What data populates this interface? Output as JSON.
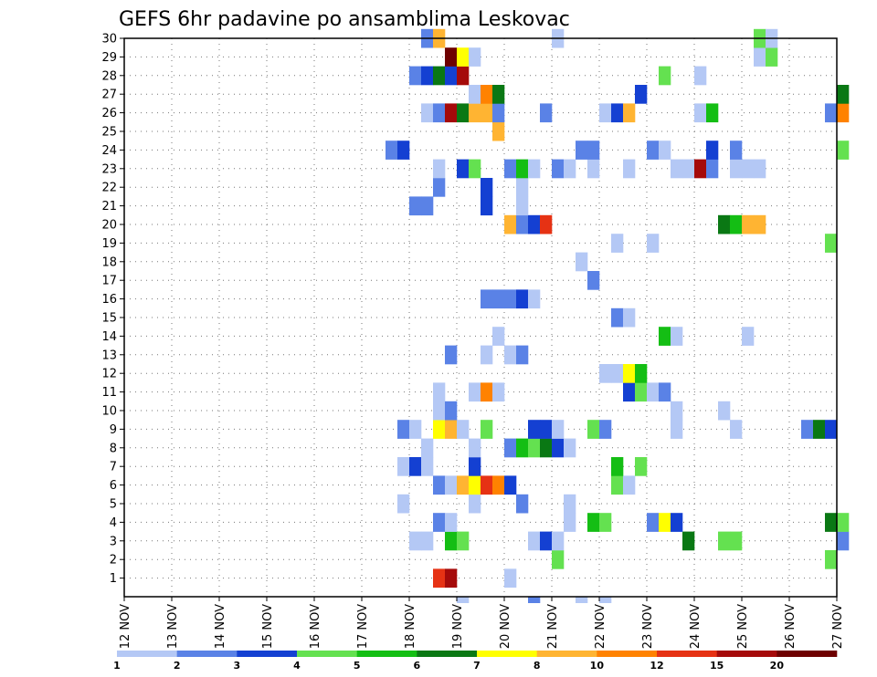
{
  "chart_data": {
    "type": "heatmap",
    "title": "GEFS 6hr padavine po ansamblima Leskovac",
    "x_tick_labels": [
      "12 NOV",
      "13 NOV",
      "14 NOV",
      "15 NOV",
      "16 NOV",
      "17 NOV",
      "18 NOV",
      "19 NOV",
      "20 NOV",
      "21 NOV",
      "22 NOV",
      "23 NOV",
      "24 NOV",
      "25 NOV",
      "26 NOV",
      "27 NOV"
    ],
    "y_tick_labels": [
      "1",
      "2",
      "3",
      "4",
      "5",
      "6",
      "7",
      "8",
      "9",
      "10",
      "11",
      "12",
      "13",
      "14",
      "15",
      "16",
      "17",
      "18",
      "19",
      "20",
      "21",
      "22",
      "23",
      "24",
      "25",
      "26",
      "27",
      "28",
      "29",
      "30"
    ],
    "xlim_days": [
      12,
      27
    ],
    "ylim": [
      0,
      30
    ],
    "grid": true,
    "colorbar_levels": [
      1,
      2,
      3,
      4,
      5,
      6,
      7,
      8,
      10,
      12,
      15,
      20
    ],
    "colorbar_labels": [
      "1",
      "2",
      "3",
      "4",
      "5",
      "6",
      "7",
      "8",
      "10",
      "12",
      "15",
      "20"
    ],
    "colorbar_colors": [
      "#b4c8f5",
      "#5a82e6",
      "#1440d2",
      "#64e150",
      "#14be14",
      "#0a7814",
      "#ffff00",
      "#ffb432",
      "#ff8200",
      "#e63214",
      "#a50a0a",
      "#6e0000"
    ],
    "cells": [
      {
        "member": 1,
        "day": 18.5,
        "cat": 9
      },
      {
        "member": 1,
        "day": 18.75,
        "cat": 10
      },
      {
        "member": 1,
        "day": 20.0,
        "cat": 0
      },
      {
        "member": 2,
        "day": 21.0,
        "cat": 3
      },
      {
        "member": 2,
        "day": 26.75,
        "cat": 3
      },
      {
        "member": 3,
        "day": 18.0,
        "cat": 0
      },
      {
        "member": 3,
        "day": 18.25,
        "cat": 0
      },
      {
        "member": 3,
        "day": 18.75,
        "cat": 4
      },
      {
        "member": 3,
        "day": 19.0,
        "cat": 3
      },
      {
        "member": 3,
        "day": 20.5,
        "cat": 0
      },
      {
        "member": 3,
        "day": 20.75,
        "cat": 2
      },
      {
        "member": 3,
        "day": 21.0,
        "cat": 0
      },
      {
        "member": 3,
        "day": 23.75,
        "cat": 5
      },
      {
        "member": 3,
        "day": 24.5,
        "cat": 3
      },
      {
        "member": 3,
        "day": 24.75,
        "cat": 3
      },
      {
        "member": 3,
        "day": 27.0,
        "cat": 1
      },
      {
        "member": 4,
        "day": 18.5,
        "cat": 1
      },
      {
        "member": 4,
        "day": 18.75,
        "cat": 0
      },
      {
        "member": 4,
        "day": 21.25,
        "cat": 0
      },
      {
        "member": 4,
        "day": 21.75,
        "cat": 4
      },
      {
        "member": 4,
        "day": 22.0,
        "cat": 3
      },
      {
        "member": 4,
        "day": 23.0,
        "cat": 1
      },
      {
        "member": 4,
        "day": 23.25,
        "cat": 6
      },
      {
        "member": 4,
        "day": 23.5,
        "cat": 2
      },
      {
        "member": 4,
        "day": 26.75,
        "cat": 5
      },
      {
        "member": 4,
        "day": 27.0,
        "cat": 3
      },
      {
        "member": 5,
        "day": 17.75,
        "cat": 0
      },
      {
        "member": 5,
        "day": 19.25,
        "cat": 0
      },
      {
        "member": 5,
        "day": 20.25,
        "cat": 1
      },
      {
        "member": 5,
        "day": 21.25,
        "cat": 0
      },
      {
        "member": 6,
        "day": 18.5,
        "cat": 1
      },
      {
        "member": 6,
        "day": 18.75,
        "cat": 0
      },
      {
        "member": 6,
        "day": 19.0,
        "cat": 7
      },
      {
        "member": 6,
        "day": 19.25,
        "cat": 6
      },
      {
        "member": 6,
        "day": 19.5,
        "cat": 9
      },
      {
        "member": 6,
        "day": 19.75,
        "cat": 8
      },
      {
        "member": 6,
        "day": 20.0,
        "cat": 2
      },
      {
        "member": 6,
        "day": 22.25,
        "cat": 3
      },
      {
        "member": 6,
        "day": 22.5,
        "cat": 0
      },
      {
        "member": 7,
        "day": 17.75,
        "cat": 0
      },
      {
        "member": 7,
        "day": 18.0,
        "cat": 2
      },
      {
        "member": 7,
        "day": 18.25,
        "cat": 0
      },
      {
        "member": 7,
        "day": 19.25,
        "cat": 2
      },
      {
        "member": 7,
        "day": 22.25,
        "cat": 4
      },
      {
        "member": 7,
        "day": 22.75,
        "cat": 3
      },
      {
        "member": 8,
        "day": 18.25,
        "cat": 0
      },
      {
        "member": 8,
        "day": 19.25,
        "cat": 0
      },
      {
        "member": 8,
        "day": 20.0,
        "cat": 1
      },
      {
        "member": 8,
        "day": 20.25,
        "cat": 4
      },
      {
        "member": 8,
        "day": 20.5,
        "cat": 3
      },
      {
        "member": 8,
        "day": 20.75,
        "cat": 5
      },
      {
        "member": 8,
        "day": 21.0,
        "cat": 2
      },
      {
        "member": 8,
        "day": 21.25,
        "cat": 0
      },
      {
        "member": 9,
        "day": 17.75,
        "cat": 1
      },
      {
        "member": 9,
        "day": 18.0,
        "cat": 0
      },
      {
        "member": 9,
        "day": 18.5,
        "cat": 6
      },
      {
        "member": 9,
        "day": 18.75,
        "cat": 7
      },
      {
        "member": 9,
        "day": 19.0,
        "cat": 0
      },
      {
        "member": 9,
        "day": 19.5,
        "cat": 3
      },
      {
        "member": 9,
        "day": 20.5,
        "cat": 2
      },
      {
        "member": 9,
        "day": 20.75,
        "cat": 2
      },
      {
        "member": 9,
        "day": 21.0,
        "cat": 0
      },
      {
        "member": 9,
        "day": 21.75,
        "cat": 3
      },
      {
        "member": 9,
        "day": 22.0,
        "cat": 1
      },
      {
        "member": 9,
        "day": 23.5,
        "cat": 0
      },
      {
        "member": 9,
        "day": 24.75,
        "cat": 0
      },
      {
        "member": 9,
        "day": 26.25,
        "cat": 1
      },
      {
        "member": 9,
        "day": 26.5,
        "cat": 5
      },
      {
        "member": 9,
        "day": 26.75,
        "cat": 2
      },
      {
        "member": 10,
        "day": 18.5,
        "cat": 0
      },
      {
        "member": 10,
        "day": 18.75,
        "cat": 1
      },
      {
        "member": 10,
        "day": 23.5,
        "cat": 0
      },
      {
        "member": 10,
        "day": 24.5,
        "cat": 0
      },
      {
        "member": 11,
        "day": 18.5,
        "cat": 0
      },
      {
        "member": 11,
        "day": 19.25,
        "cat": 0
      },
      {
        "member": 11,
        "day": 19.5,
        "cat": 8
      },
      {
        "member": 11,
        "day": 19.75,
        "cat": 0
      },
      {
        "member": 11,
        "day": 22.5,
        "cat": 2
      },
      {
        "member": 11,
        "day": 22.75,
        "cat": 3
      },
      {
        "member": 11,
        "day": 23.0,
        "cat": 0
      },
      {
        "member": 11,
        "day": 23.25,
        "cat": 1
      },
      {
        "member": 12,
        "day": 22.0,
        "cat": 0
      },
      {
        "member": 12,
        "day": 22.25,
        "cat": 0
      },
      {
        "member": 12,
        "day": 22.5,
        "cat": 6
      },
      {
        "member": 12,
        "day": 22.75,
        "cat": 4
      },
      {
        "member": 13,
        "day": 18.75,
        "cat": 1
      },
      {
        "member": 13,
        "day": 19.5,
        "cat": 0
      },
      {
        "member": 13,
        "day": 20.0,
        "cat": 0
      },
      {
        "member": 13,
        "day": 20.25,
        "cat": 1
      },
      {
        "member": 14,
        "day": 19.75,
        "cat": 0
      },
      {
        "member": 14,
        "day": 23.25,
        "cat": 4
      },
      {
        "member": 14,
        "day": 23.5,
        "cat": 0
      },
      {
        "member": 14,
        "day": 25.0,
        "cat": 0
      },
      {
        "member": 15,
        "day": 22.25,
        "cat": 1
      },
      {
        "member": 15,
        "day": 22.5,
        "cat": 0
      },
      {
        "member": 16,
        "day": 19.5,
        "cat": 1
      },
      {
        "member": 16,
        "day": 19.75,
        "cat": 1
      },
      {
        "member": 16,
        "day": 20.0,
        "cat": 1
      },
      {
        "member": 16,
        "day": 20.25,
        "cat": 2
      },
      {
        "member": 16,
        "day": 20.5,
        "cat": 0
      },
      {
        "member": 17,
        "day": 21.75,
        "cat": 1
      },
      {
        "member": 18,
        "day": 21.5,
        "cat": 0
      },
      {
        "member": 19,
        "day": 22.25,
        "cat": 0
      },
      {
        "member": 19,
        "day": 23.0,
        "cat": 0
      },
      {
        "member": 19,
        "day": 26.75,
        "cat": 3
      },
      {
        "member": 20,
        "day": 20.0,
        "cat": 7
      },
      {
        "member": 20,
        "day": 20.25,
        "cat": 1
      },
      {
        "member": 20,
        "day": 20.5,
        "cat": 2
      },
      {
        "member": 20,
        "day": 20.75,
        "cat": 9
      },
      {
        "member": 20,
        "day": 24.5,
        "cat": 5
      },
      {
        "member": 20,
        "day": 24.75,
        "cat": 4
      },
      {
        "member": 20,
        "day": 25.0,
        "cat": 7
      },
      {
        "member": 20,
        "day": 25.25,
        "cat": 7
      },
      {
        "member": 21,
        "day": 18.0,
        "cat": 1
      },
      {
        "member": 21,
        "day": 18.25,
        "cat": 1
      },
      {
        "member": 21,
        "day": 19.5,
        "cat": 2
      },
      {
        "member": 21,
        "day": 20.25,
        "cat": 0
      },
      {
        "member": 22,
        "day": 18.5,
        "cat": 1
      },
      {
        "member": 22,
        "day": 19.5,
        "cat": 2
      },
      {
        "member": 22,
        "day": 20.25,
        "cat": 0
      },
      {
        "member": 23,
        "day": 18.5,
        "cat": 0
      },
      {
        "member": 23,
        "day": 19.0,
        "cat": 2
      },
      {
        "member": 23,
        "day": 19.25,
        "cat": 3
      },
      {
        "member": 23,
        "day": 20.0,
        "cat": 1
      },
      {
        "member": 23,
        "day": 20.25,
        "cat": 4
      },
      {
        "member": 23,
        "day": 20.5,
        "cat": 0
      },
      {
        "member": 23,
        "day": 21.0,
        "cat": 1
      },
      {
        "member": 23,
        "day": 21.25,
        "cat": 0
      },
      {
        "member": 23,
        "day": 21.75,
        "cat": 0
      },
      {
        "member": 23,
        "day": 22.5,
        "cat": 0
      },
      {
        "member": 23,
        "day": 23.5,
        "cat": 0
      },
      {
        "member": 23,
        "day": 23.75,
        "cat": 0
      },
      {
        "member": 23,
        "day": 24.0,
        "cat": 10
      },
      {
        "member": 23,
        "day": 24.25,
        "cat": 1
      },
      {
        "member": 23,
        "day": 24.75,
        "cat": 0
      },
      {
        "member": 23,
        "day": 25.0,
        "cat": 0
      },
      {
        "member": 23,
        "day": 25.25,
        "cat": 0
      },
      {
        "member": 24,
        "day": 17.5,
        "cat": 1
      },
      {
        "member": 24,
        "day": 17.75,
        "cat": 2
      },
      {
        "member": 24,
        "day": 21.5,
        "cat": 1
      },
      {
        "member": 24,
        "day": 21.75,
        "cat": 1
      },
      {
        "member": 24,
        "day": 23.0,
        "cat": 1
      },
      {
        "member": 24,
        "day": 23.25,
        "cat": 0
      },
      {
        "member": 24,
        "day": 24.25,
        "cat": 2
      },
      {
        "member": 24,
        "day": 24.75,
        "cat": 1
      },
      {
        "member": 24,
        "day": 27.0,
        "cat": 3
      },
      {
        "member": 25,
        "day": 19.75,
        "cat": 7
      },
      {
        "member": 26,
        "day": 18.25,
        "cat": 0
      },
      {
        "member": 26,
        "day": 18.5,
        "cat": 1
      },
      {
        "member": 26,
        "day": 18.75,
        "cat": 10
      },
      {
        "member": 26,
        "day": 19.0,
        "cat": 5
      },
      {
        "member": 26,
        "day": 19.25,
        "cat": 7
      },
      {
        "member": 26,
        "day": 19.5,
        "cat": 7
      },
      {
        "member": 26,
        "day": 19.75,
        "cat": 1
      },
      {
        "member": 26,
        "day": 20.75,
        "cat": 1
      },
      {
        "member": 26,
        "day": 22.0,
        "cat": 0
      },
      {
        "member": 26,
        "day": 22.25,
        "cat": 2
      },
      {
        "member": 26,
        "day": 22.5,
        "cat": 7
      },
      {
        "member": 26,
        "day": 24.0,
        "cat": 0
      },
      {
        "member": 26,
        "day": 24.25,
        "cat": 4
      },
      {
        "member": 26,
        "day": 26.75,
        "cat": 1
      },
      {
        "member": 26,
        "day": 27.0,
        "cat": 8
      },
      {
        "member": 27,
        "day": 19.25,
        "cat": 0
      },
      {
        "member": 27,
        "day": 19.5,
        "cat": 8
      },
      {
        "member": 27,
        "day": 19.75,
        "cat": 5
      },
      {
        "member": 27,
        "day": 22.75,
        "cat": 2
      },
      {
        "member": 27,
        "day": 27.0,
        "cat": 5
      },
      {
        "member": 28,
        "day": 18.0,
        "cat": 1
      },
      {
        "member": 28,
        "day": 18.25,
        "cat": 2
      },
      {
        "member": 28,
        "day": 18.5,
        "cat": 5
      },
      {
        "member": 28,
        "day": 18.75,
        "cat": 2
      },
      {
        "member": 28,
        "day": 19.0,
        "cat": 10
      },
      {
        "member": 28,
        "day": 23.25,
        "cat": 3
      },
      {
        "member": 28,
        "day": 24.0,
        "cat": 0
      },
      {
        "member": 29,
        "day": 18.75,
        "cat": 11
      },
      {
        "member": 29,
        "day": 19.0,
        "cat": 6
      },
      {
        "member": 29,
        "day": 19.25,
        "cat": 0
      },
      {
        "member": 29,
        "day": 25.25,
        "cat": 0
      },
      {
        "member": 29,
        "day": 25.5,
        "cat": 3
      },
      {
        "member": 30,
        "day": 18.25,
        "cat": 1
      },
      {
        "member": 30,
        "day": 18.5,
        "cat": 7
      },
      {
        "member": 30,
        "day": 21.0,
        "cat": 0
      },
      {
        "member": 30,
        "day": 25.25,
        "cat": 3
      },
      {
        "member": 30,
        "day": 25.5,
        "cat": 0
      }
    ],
    "below_axis_cells": [
      {
        "day": 19.0,
        "cat": 0
      },
      {
        "day": 20.5,
        "cat": 1
      },
      {
        "day": 21.5,
        "cat": 0
      },
      {
        "day": 22.0,
        "cat": 0
      }
    ]
  }
}
